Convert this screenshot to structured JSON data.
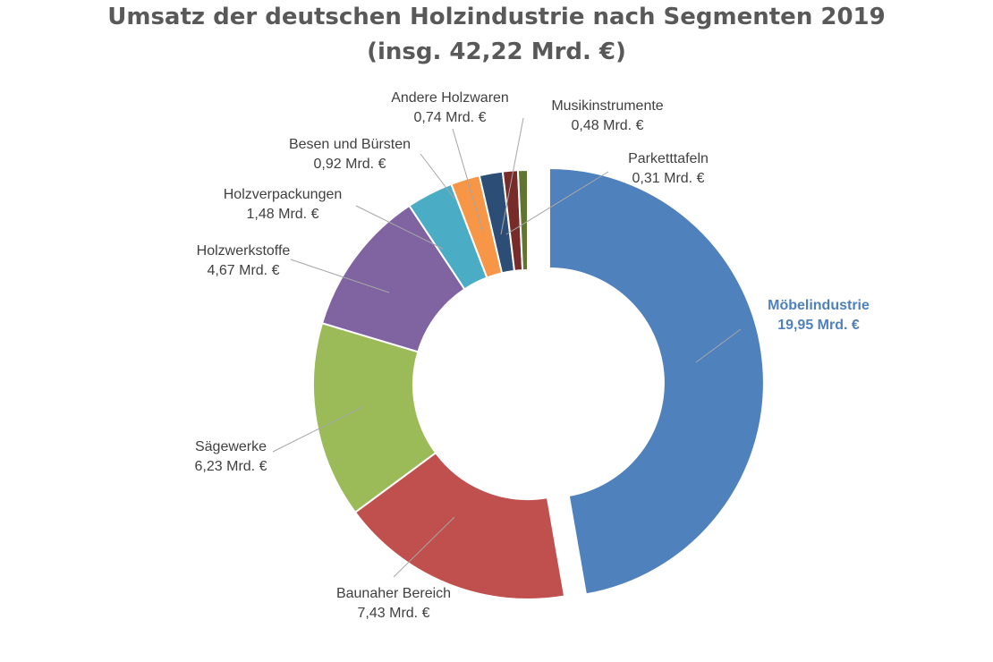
{
  "title_line1": "Umsatz der deutschen Holzindustrie nach Segmenten 2019",
  "title_line2": "(insg. 42,22 Mrd. €)",
  "chart_data": {
    "type": "pie",
    "subtype": "doughnut",
    "title": "Umsatz der deutschen Holzindustrie nach Segmenten 2019 (insg. 42,22 Mrd. €)",
    "total": 42.22,
    "unit": "Mrd. €",
    "legend": "none",
    "slices": [
      {
        "name": "Möbelindustrie",
        "value": 19.95,
        "label": "19,95 Mrd. €",
        "color": "#4f81bd",
        "exploded": true,
        "highlight": true
      },
      {
        "name": "Baunaher Bereich",
        "value": 7.43,
        "label": "7,43 Mrd. €",
        "color": "#c0504d"
      },
      {
        "name": "Sägewerke",
        "value": 6.23,
        "label": "6,23 Mrd. €",
        "color": "#9bbb59"
      },
      {
        "name": "Holzwerkstoffe",
        "value": 4.67,
        "label": "4,67 Mrd. €",
        "color": "#8064a2"
      },
      {
        "name": "Holzverpackungen",
        "value": 1.48,
        "label": "1,48 Mrd. €",
        "color": "#4bacc6"
      },
      {
        "name": "Besen und Bürsten",
        "value": 0.92,
        "label": "0,92 Mrd. €",
        "color": "#f79646"
      },
      {
        "name": "Andere Holzwaren",
        "value": 0.74,
        "label": "0,74 Mrd. €",
        "color": "#2c4d75"
      },
      {
        "name": "Musikinstrumente",
        "value": 0.48,
        "label": "0,48 Mrd. €",
        "color": "#772c2a"
      },
      {
        "name": "Parketttafeln",
        "value": 0.31,
        "label": "0,31 Mrd. €",
        "color": "#5f7530"
      }
    ]
  }
}
